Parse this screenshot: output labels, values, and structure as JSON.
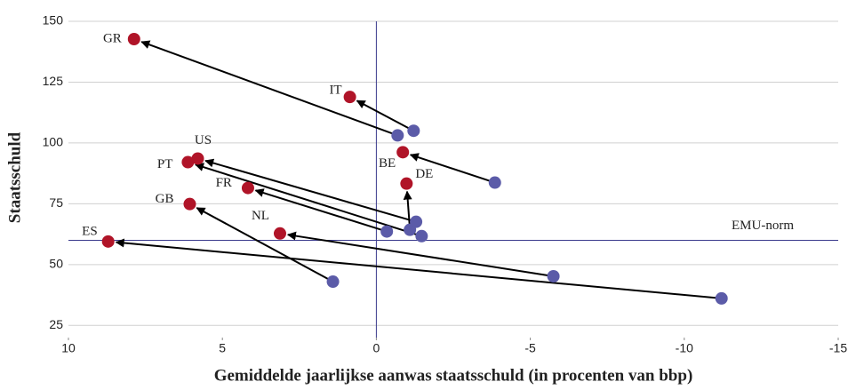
{
  "chart_data": {
    "type": "arrow-scatter",
    "x_label": "Gemiddelde jaarlijkse aanwas staatsschuld (in procenten van bbp)",
    "y_label": "Staatsschuld",
    "xlim": [
      10,
      -15
    ],
    "xticks": [
      10,
      5,
      0,
      -5,
      -10,
      -15
    ],
    "ylim": [
      20,
      150
    ],
    "yticks": [
      25,
      50,
      75,
      100,
      125,
      150
    ],
    "grid": true,
    "categories": [
      "GR",
      "IT",
      "BE",
      "DE",
      "US",
      "PT",
      "FR",
      "GB",
      "NL",
      "ES"
    ],
    "x_start": [
      -0.69,
      -1.21,
      -3.85,
      -1.09,
      -1.29,
      -1.47,
      -0.34,
      1.41,
      -5.75,
      -11.21
    ],
    "y_start": [
      103.1,
      105,
      83.7,
      64.3,
      67.6,
      61.7,
      63.6,
      43.0,
      45.2,
      36.1
    ],
    "x_end": [
      7.87,
      0.86,
      -0.86,
      -0.98,
      5.8,
      6.12,
      4.17,
      6.06,
      3.13,
      8.71
    ],
    "y_end": [
      142.7,
      118.9,
      96.2,
      83.3,
      93.6,
      92.1,
      81.5,
      74.9,
      62.8,
      59.5
    ],
    "start_color": "#5b5ba8",
    "end_color": "#b01428",
    "reference_line": {
      "value": 60,
      "label": "EMU-norm",
      "color": "#3a3a8c"
    }
  }
}
